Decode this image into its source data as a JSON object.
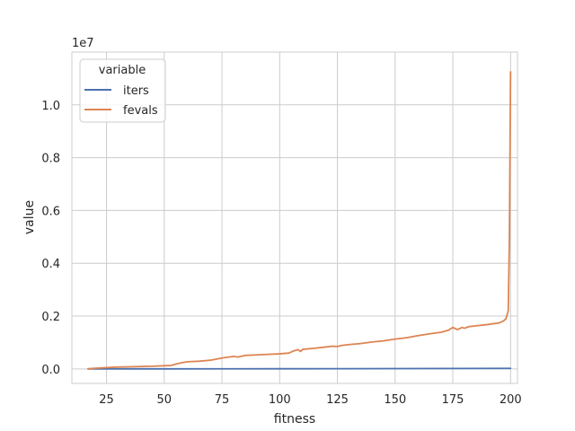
{
  "chart_data": {
    "type": "line",
    "xlabel": "fitness",
    "ylabel": "value",
    "offset_label": "1e7",
    "xlim": [
      10,
      203
    ],
    "ylim": [
      -0.055,
      1.2
    ],
    "x_ticks": [
      25,
      50,
      75,
      100,
      125,
      150,
      175,
      200
    ],
    "y_ticks": [
      0.0,
      0.2,
      0.4,
      0.6,
      0.8,
      1.0
    ],
    "y_tick_labels": [
      "0.0",
      "0.2",
      "0.4",
      "0.6",
      "0.8",
      "1.0"
    ],
    "grid": true,
    "legend": {
      "title": "variable",
      "placement": "top-left"
    },
    "series": [
      {
        "name": "iters",
        "color": "#4c72b0",
        "x": [
          17,
          50,
          100,
          150,
          175,
          199,
          200
        ],
        "y": [
          0.0,
          0.0,
          0.0005,
          0.001,
          0.0015,
          0.002,
          0.002
        ]
      },
      {
        "name": "fevals",
        "color": "#dd8452",
        "x": [
          17,
          20,
          25,
          30,
          35,
          40,
          45,
          50,
          53,
          55,
          58,
          60,
          65,
          70,
          72,
          75,
          78,
          80,
          82,
          85,
          90,
          95,
          100,
          104,
          106,
          108,
          109,
          110,
          115,
          120,
          123,
          125,
          127,
          130,
          135,
          140,
          145,
          150,
          155,
          160,
          165,
          170,
          173,
          175,
          177,
          179,
          180,
          182,
          185,
          190,
          195,
          197,
          198,
          199,
          199.5,
          200
        ],
        "y": [
          0.0,
          0.0025,
          0.005,
          0.007,
          0.008,
          0.009,
          0.01,
          0.012,
          0.013,
          0.018,
          0.024,
          0.027,
          0.029,
          0.033,
          0.036,
          0.041,
          0.045,
          0.047,
          0.045,
          0.051,
          0.053,
          0.055,
          0.057,
          0.06,
          0.068,
          0.073,
          0.066,
          0.074,
          0.078,
          0.083,
          0.086,
          0.085,
          0.089,
          0.092,
          0.096,
          0.102,
          0.106,
          0.113,
          0.118,
          0.126,
          0.133,
          0.139,
          0.146,
          0.157,
          0.149,
          0.157,
          0.154,
          0.16,
          0.163,
          0.168,
          0.174,
          0.182,
          0.19,
          0.22,
          0.5,
          1.125
        ]
      }
    ]
  }
}
